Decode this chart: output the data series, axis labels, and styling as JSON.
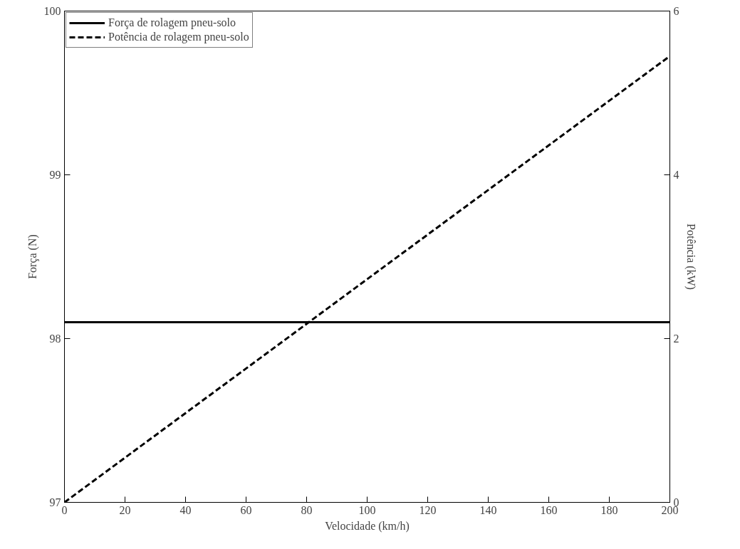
{
  "chart_data": {
    "type": "line",
    "xlabel": "Velocidade (km/h)",
    "ylabel": "Força (N)",
    "y2label": "Potência (kW)",
    "x": [
      0,
      200
    ],
    "series": [
      {
        "name": "Força de rolagem pneu-solo",
        "color": "#000000",
        "values": [
          98.1,
          98.1
        ],
        "line_style": "solid"
      },
      {
        "name": "Potência de rolagem pneu-solo",
        "color": "#000000",
        "values": [
          0,
          5.45
        ],
        "line_style": "dashed",
        "axis": "y2"
      }
    ],
    "xlim": [
      0,
      200
    ],
    "xticks": [
      0,
      20,
      40,
      60,
      80,
      100,
      120,
      140,
      160,
      180,
      200
    ],
    "ylim": [
      97,
      100
    ],
    "yticks": [
      97,
      98,
      99,
      100
    ],
    "y2lim": [
      0,
      6
    ],
    "y2ticks": [
      0,
      2,
      4,
      6
    ],
    "grid": false,
    "legend": "top left",
    "marker": "none"
  }
}
